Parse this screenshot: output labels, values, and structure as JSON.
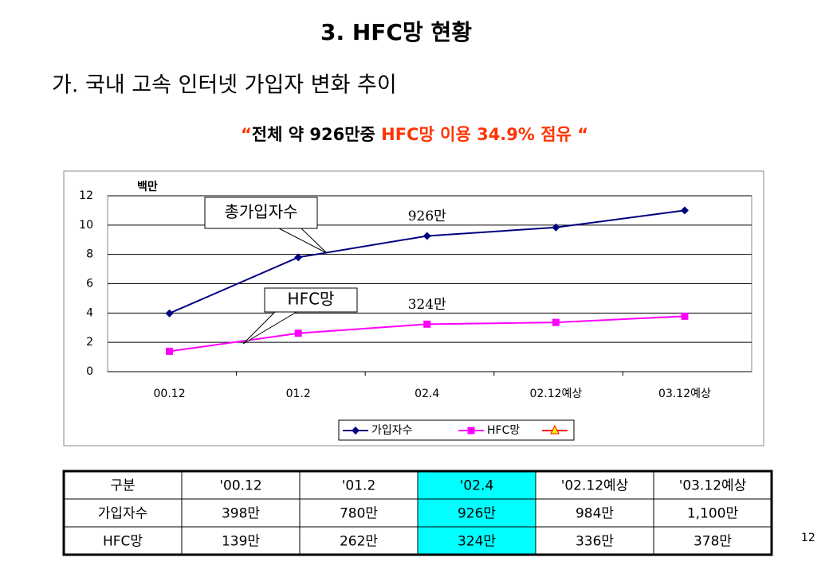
{
  "title": "3. HFC망 현황",
  "subtitle": "가. 국내 고속 인터넷 가입자 변화 추이",
  "headline": [
    {
      "text": "“",
      "color": "#ff3300"
    },
    {
      "text": "전체 약 926만중 ",
      "color": "#000000"
    },
    {
      "text": "HFC망 이용 34.9% 점유 “",
      "color": "#ff3300"
    }
  ],
  "chart_data": {
    "type": "line",
    "y_unit": "백만",
    "categories": [
      "00.12",
      "01.2",
      "02.4",
      "02.12예상",
      "03.12예상"
    ],
    "series": [
      {
        "name": "가입자수",
        "color": "#000080",
        "marker": "diamond",
        "values": [
          3.98,
          7.8,
          9.26,
          9.84,
          11.0
        ],
        "value_labels": [
          null,
          null,
          "926만",
          null,
          null
        ]
      },
      {
        "name": "HFC망",
        "color": "#ff00ff",
        "marker": "square",
        "values": [
          1.39,
          2.62,
          3.24,
          3.36,
          3.78
        ],
        "value_labels": [
          null,
          null,
          "324만",
          null,
          null
        ]
      }
    ],
    "ylim": [
      0,
      12
    ],
    "yticks": [
      0,
      2,
      4,
      6,
      8,
      10,
      12
    ],
    "grid": true,
    "annotations": [
      "총가입자수",
      "HFC망"
    ]
  },
  "table": {
    "header": [
      "구분",
      "'00.12",
      "'01.2",
      "'02.4",
      "'02.12예상",
      "'03.12예상"
    ],
    "rows": [
      [
        "가입자수",
        "398만",
        "780만",
        "926만",
        "984만",
        "1,100만"
      ],
      [
        "HFC망",
        "139만",
        "262만",
        "324만",
        "336만",
        "378만"
      ]
    ],
    "highlight_column": 3,
    "highlight_color": "#00ffff"
  },
  "page_number": "12"
}
